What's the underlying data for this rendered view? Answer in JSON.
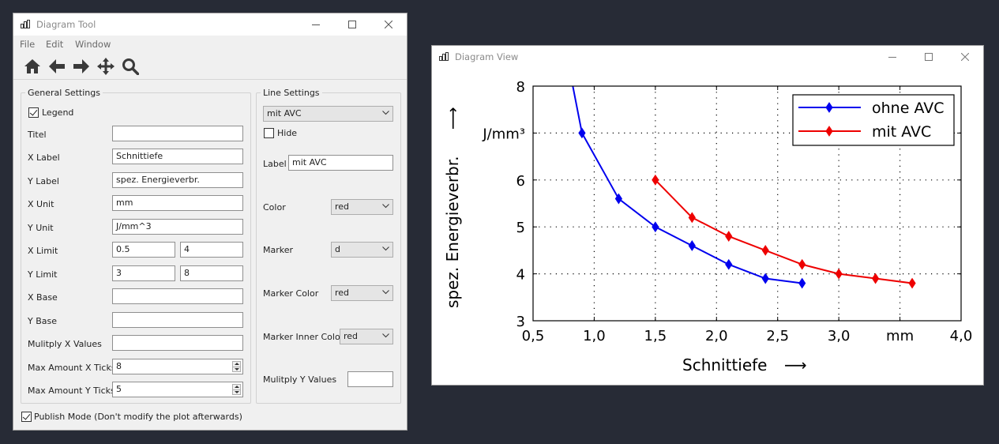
{
  "tool_window": {
    "title": "Diagram Tool",
    "menu": [
      "File",
      "Edit",
      "Window"
    ],
    "toolbar_icons": [
      "home-icon",
      "back-arrow-icon",
      "forward-arrow-icon",
      "pan-move-icon",
      "zoom-search-icon"
    ],
    "general": {
      "title": "General Settings",
      "legend_label": "Legend",
      "legend_checked": true,
      "titel_label": "Titel",
      "titel_value": "",
      "xlabel_label": "X Label",
      "xlabel_value": "Schnittiefe",
      "ylabel_label": "Y Label",
      "ylabel_value": "spez. Energieverbr.",
      "xunit_label": "X Unit",
      "xunit_value": "mm",
      "yunit_label": "Y Unit",
      "yunit_value": "J/mm^3",
      "xlimit_label": "X Limit",
      "xlimit_min": "0.5",
      "xlimit_max": "4",
      "ylimit_label": "Y Limit",
      "ylimit_min": "3",
      "ylimit_max": "8",
      "xbase_label": "X Base",
      "xbase_value": "",
      "ybase_label": "Y Base",
      "ybase_value": "",
      "multx_label": "Mulitply X Values",
      "multx_value": "",
      "maxx_label": "Max Amount X Ticks",
      "maxx_value": "8",
      "maxy_label": "Max Amount Y Ticks",
      "maxy_value": "5"
    },
    "line": {
      "title": "Line Settings",
      "selected_line": "mit AVC",
      "hide_label": "Hide",
      "hide_checked": false,
      "label_label": "Label",
      "label_value": "mit AVC",
      "color_label": "Color",
      "color_value": "red",
      "marker_label": "Marker",
      "marker_value": "d",
      "marker_color_label": "Marker Color",
      "marker_color_value": "red",
      "marker_inner_label": "Marker Inner Color",
      "marker_inner_value": "red",
      "multy_label": "Mulitply Y Values",
      "multy_value": ""
    },
    "publish_label": "Publish Mode (Don't modify the plot afterwards)",
    "publish_checked": true
  },
  "view_window": {
    "title": "Diagram View"
  },
  "chart_data": {
    "type": "line",
    "title": "",
    "xlabel": "Schnittiefe",
    "ylabel": "spez. Energieverbr.",
    "x_unit": "mm",
    "y_unit": "J/mm³",
    "xlim": [
      0.5,
      4.0
    ],
    "ylim": [
      3,
      8
    ],
    "x_ticks": [
      "0,5",
      "1,0",
      "1,5",
      "2,0",
      "2,5",
      "3,0",
      "mm",
      "4,0"
    ],
    "y_ticks": [
      "3",
      "4",
      "5",
      "6",
      "J/mm³",
      "8"
    ],
    "grid": true,
    "legend_position": "top-right",
    "series": [
      {
        "name": "ohne AVC",
        "color": "#0000ee",
        "marker": "diamond",
        "x": [
          0.6,
          0.9,
          1.2,
          1.5,
          1.8,
          2.1,
          2.4,
          2.7
        ],
        "y": [
          11.0,
          7.0,
          5.6,
          5.0,
          4.6,
          4.2,
          3.9,
          3.8
        ]
      },
      {
        "name": "mit AVC",
        "color": "#ee0000",
        "marker": "diamond",
        "x": [
          1.5,
          1.8,
          2.1,
          2.4,
          2.7,
          3.0,
          3.3,
          3.6
        ],
        "y": [
          6.0,
          5.2,
          4.8,
          4.5,
          4.2,
          4.0,
          3.9,
          3.8
        ]
      }
    ]
  }
}
